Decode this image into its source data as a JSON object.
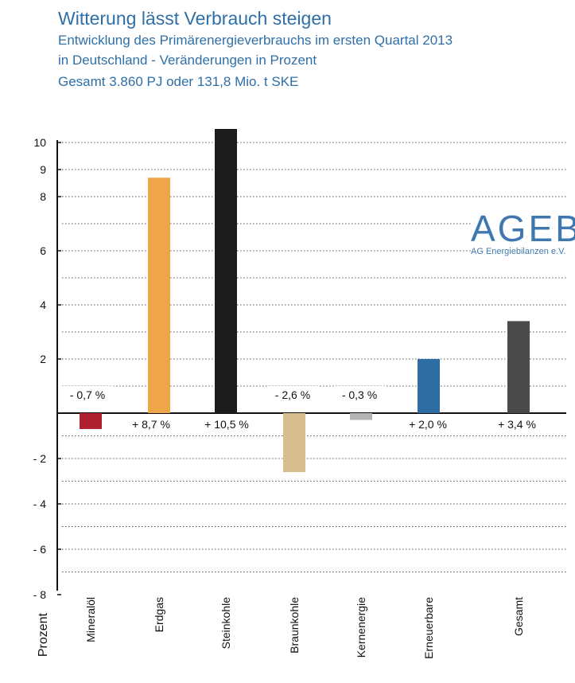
{
  "header": {
    "title": "Witterung lässt Verbrauch steigen",
    "subtitle_line1": "Entwicklung des Primärenergieverbrauchs im ersten Quartal 2013",
    "subtitle_line2": "in Deutschland - Veränderungen in Prozent",
    "total": "Gesamt 3.860 PJ oder 131,8 Mio. t SKE"
  },
  "logo": {
    "main": "AGEB",
    "sub": "AG Energiebilanzen e.V."
  },
  "colors": {
    "background": "#ffffff",
    "title": "#2f6fa7",
    "logo": "#3f78b0",
    "axis": "#111111",
    "grid": "#555555"
  },
  "chart_data": {
    "type": "bar",
    "ylabel": "Prozent",
    "ylim": [
      -8,
      10.5
    ],
    "y_ticks": [
      {
        "label": "10",
        "value": 10
      },
      {
        "label": "9",
        "value": 9
      },
      {
        "label": "8",
        "value": 8
      },
      {
        "label": "6",
        "value": 6
      },
      {
        "label": "4",
        "value": 4
      },
      {
        "label": "2",
        "value": 2
      },
      {
        "label": "- 2",
        "value": -2
      },
      {
        "label": "- 4",
        "value": -4
      },
      {
        "label": "- 6",
        "value": -6
      },
      {
        "label": "- 8",
        "value": -8
      }
    ],
    "grid": true,
    "categories": [
      "Mineralöl",
      "Erdgas",
      "Steinkohle",
      "Braunkohle",
      "Kernenergie",
      "Erneuerbare",
      "Gesamt"
    ],
    "values": [
      -0.7,
      8.7,
      10.5,
      -2.6,
      -0.3,
      2.0,
      3.4
    ],
    "value_labels": [
      "- 0,7 %",
      "+ 8,7 %",
      "+ 10,5 %",
      "- 2,6 %",
      "- 0,3 %",
      "+ 2,0 %",
      "+ 3,4 %"
    ],
    "bar_colors": [
      "#b0202e",
      "#eea648",
      "#1c1c1c",
      "#d7bd8f",
      "#b3b3b3",
      "#2f6ea5",
      "#4a4a4a"
    ]
  }
}
